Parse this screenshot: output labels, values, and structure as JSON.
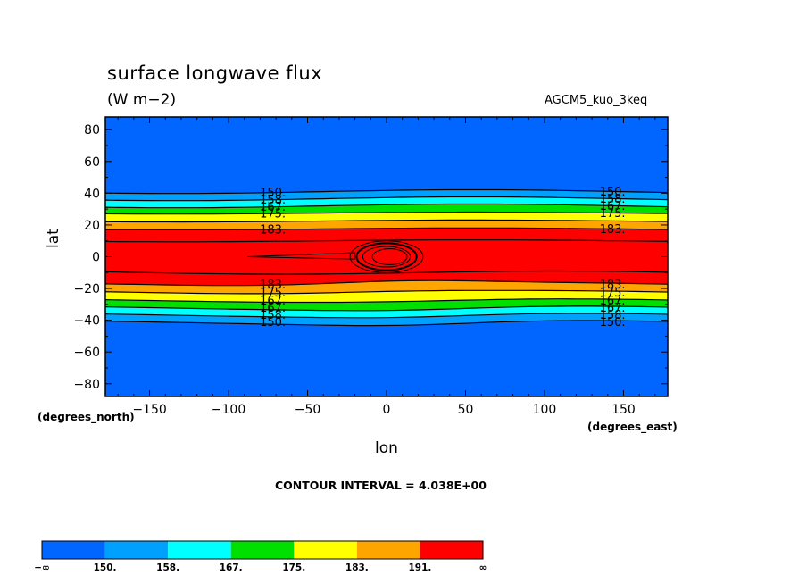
{
  "chart_data": {
    "type": "filled-contour",
    "title": "surface longwave flux",
    "units": "(W m−2)",
    "dataset": "AGCM5_kuo_3keq",
    "xlabel": "lon",
    "ylabel": "lat",
    "x_units": "(degrees_east)",
    "y_units": "(degrees_north)",
    "xlim": [
      -178,
      178
    ],
    "ylim": [
      -88,
      88
    ],
    "x_ticks": [
      -150,
      -100,
      -50,
      0,
      50,
      100,
      150
    ],
    "y_ticks": [
      80,
      60,
      40,
      20,
      0,
      -20,
      -40,
      -60,
      -80
    ],
    "contour_interval_text": "CONTOUR INTERVAL = 4.038E+00",
    "levels": [
      150,
      158,
      167,
      175,
      183,
      191
    ],
    "level_labels": [
      "150.",
      "158.",
      "167.",
      "175.",
      "183."
    ],
    "colorbar": {
      "labels": [
        "−∞",
        "150.",
        "158.",
        "167.",
        "175.",
        "183.",
        "191.",
        "∞"
      ],
      "colors": [
        "#0066ff",
        "#00a0ff",
        "#00ffff",
        "#00e000",
        "#ffff00",
        "#ffa500",
        "#ff0000"
      ]
    },
    "bands": {
      "north_lat": [
        41,
        36.5,
        32,
        27.5,
        22.5,
        17.5,
        10
      ],
      "south_lat": [
        -41,
        -36.5,
        -32,
        -27.5,
        -22.5,
        -17.5,
        -10
      ],
      "south_lat_mid": [
        -43,
        -38,
        -33.5,
        -28,
        -21.5,
        -15,
        -10
      ],
      "maximum_center": [
        0,
        0
      ],
      "maximum_radius_lon": [
        22,
        19,
        15,
        11
      ],
      "maximum_radius_lat": [
        10,
        8.5,
        6.5,
        5
      ]
    }
  }
}
